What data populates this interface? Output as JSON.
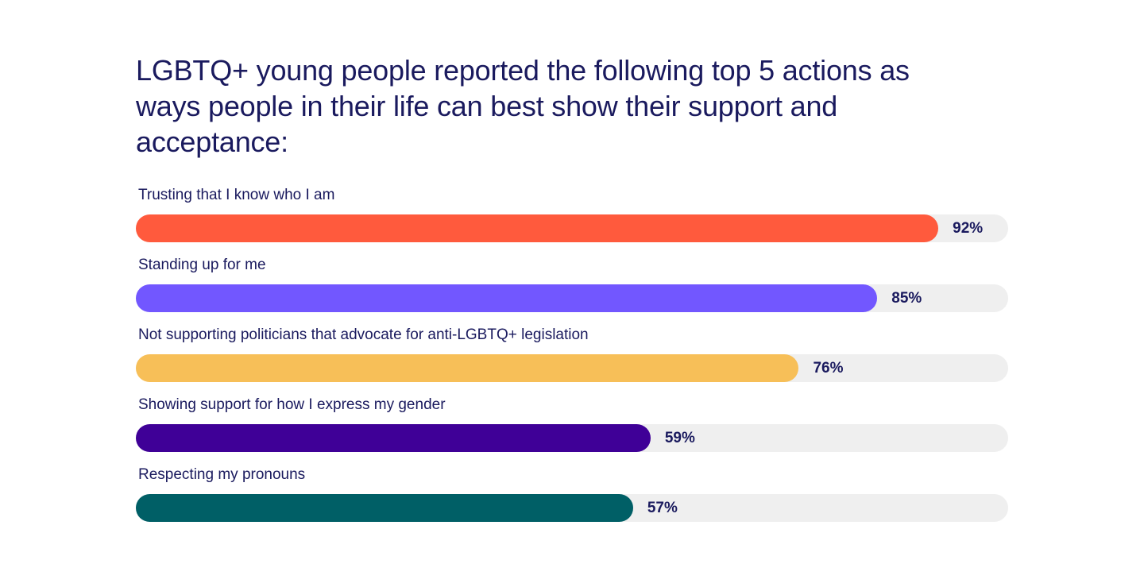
{
  "chart_data": {
    "type": "bar",
    "orientation": "horizontal",
    "title": "LGBTQ+ young people reported the following top 5 actions as ways people in their life can best show their support and acceptance:",
    "categories": [
      "Trusting that I know who I am",
      "Standing up for me",
      "Not supporting politicians that advocate for anti-LGBTQ+ legislation",
      "Showing support for how I express my gender",
      "Respecting my pronouns"
    ],
    "values": [
      92,
      85,
      76,
      59,
      57
    ],
    "value_labels": [
      "92%",
      "85%",
      "76%",
      "59%",
      "57%"
    ],
    "colors": [
      "#ff5a3d",
      "#7257ff",
      "#f7bf58",
      "#3f0097",
      "#005f66"
    ],
    "track_color": "#efefef",
    "xlim": [
      0,
      100
    ],
    "grid": false,
    "legend": "none"
  }
}
